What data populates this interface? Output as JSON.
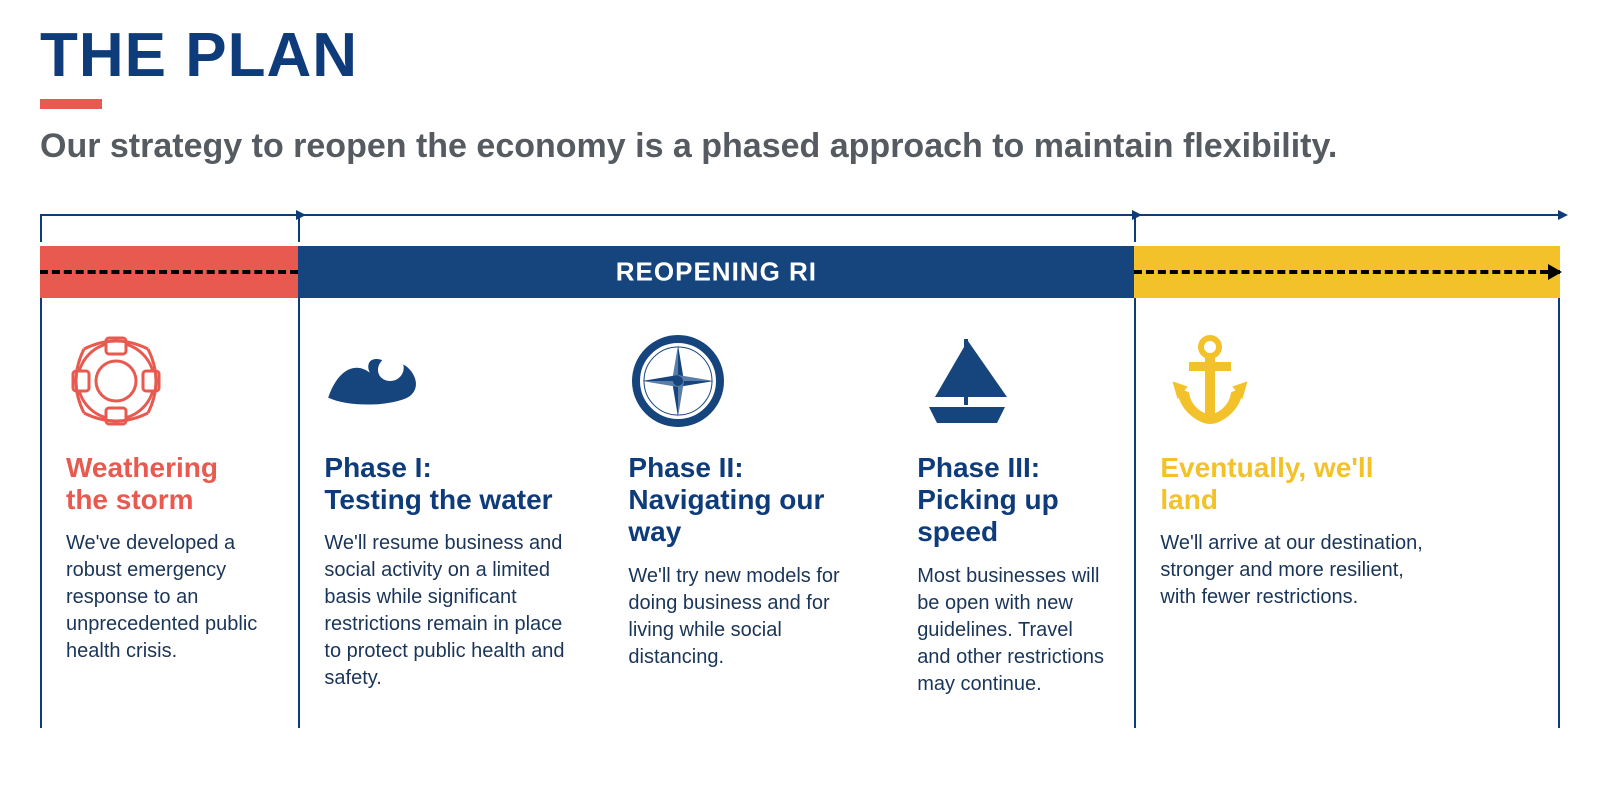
{
  "header": {
    "title": "THE PLAN",
    "title_color": "#0e3b7a",
    "title_fontsize": 62,
    "accent_color": "#e85a4f",
    "accent_width": 62,
    "accent_height": 10,
    "subtitle": "Our strategy to reopen the economy is a phased approach to maintain flexibility.",
    "subtitle_color": "#555b60",
    "subtitle_fontsize": 34
  },
  "banner": {
    "label": "REOPENING RI",
    "label_color": "#ffffff",
    "label_fontsize": 26,
    "dash_color": "#000000",
    "dash_stroke": 4,
    "segments": [
      {
        "color": "#e85a4f",
        "width_pct": 17
      },
      {
        "color": "#16447c",
        "width_pct": 55
      },
      {
        "color": "#f3c22b",
        "width_pct": 28
      }
    ]
  },
  "brackets": {
    "color": "#0e3b7a",
    "stroke": 2,
    "items": [
      {
        "left_pct": 0,
        "width_pct": 17
      },
      {
        "left_pct": 17,
        "width_pct": 55
      },
      {
        "left_pct": 72,
        "width_pct": 28
      }
    ]
  },
  "divider_color": "#0e3b7a",
  "divider_stroke": 2,
  "phases": [
    {
      "icon": "lifebuoy",
      "icon_color": "#e85a4f",
      "title": "Weathering\nthe storm",
      "title_color": "#e85a4f",
      "body": "We've developed a robust emergency response to an unprecedented public health crisis.",
      "width_pct": 17
    },
    {
      "icon": "wave",
      "icon_color": "#16447c",
      "title": "Phase I:\nTesting the water",
      "title_color": "#0e3b7a",
      "body": "We'll resume business and social activity on a limited basis while significant restrictions remain in place to protect public health and safety.",
      "width_pct": 20
    },
    {
      "icon": "compass",
      "icon_color": "#16447c",
      "title": "Phase II:\nNavigating our way",
      "title_color": "#0e3b7a",
      "body": "We'll try new models for doing business and for living while social distancing.",
      "width_pct": 19
    },
    {
      "icon": "sailboat",
      "icon_color": "#16447c",
      "title": "Phase III:\nPicking up speed",
      "title_color": "#0e3b7a",
      "body": "Most businesses will be open with new guidelines. Travel and other restrictions may continue.",
      "width_pct": 16
    },
    {
      "icon": "anchor",
      "icon_color": "#f3c22b",
      "title": "Eventually, we'll\nland",
      "title_color": "#f3c22b",
      "body": "We'll arrive at our destination, stronger and more resilient, with fewer restrictions.",
      "width_pct": 28
    }
  ],
  "body_text_color": "#1a3558",
  "body_fontsize": 20,
  "phase_title_fontsize": 28,
  "background_color": "#ffffff"
}
